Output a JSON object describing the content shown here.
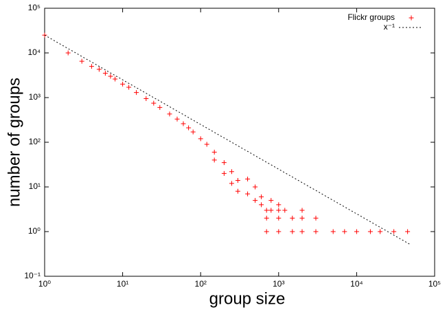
{
  "chart_data": {
    "type": "scatter",
    "xlabel": "group size",
    "ylabel": "number of groups",
    "xscale": "log",
    "yscale": "log",
    "xlim": [
      1,
      100000
    ],
    "ylim": [
      0.1,
      100000
    ],
    "xticks": [
      {
        "value": 1,
        "label": "10⁰"
      },
      {
        "value": 10,
        "label": "10¹"
      },
      {
        "value": 100,
        "label": "10²"
      },
      {
        "value": 1000,
        "label": "10³"
      },
      {
        "value": 10000,
        "label": "10⁴"
      },
      {
        "value": 100000,
        "label": "10⁵"
      }
    ],
    "yticks": [
      {
        "value": 0.1,
        "label": "10⁻¹"
      },
      {
        "value": 1,
        "label": "10⁰"
      },
      {
        "value": 10,
        "label": "10¹"
      },
      {
        "value": 100,
        "label": "10²"
      },
      {
        "value": 1000,
        "label": "10³"
      },
      {
        "value": 10000,
        "label": "10⁴"
      },
      {
        "value": 100000,
        "label": "10⁵"
      }
    ],
    "legend": "top-right",
    "series": [
      {
        "name": "Flickr groups",
        "color": "#ff0000",
        "kind": "points",
        "x": [
          1,
          2,
          3,
          4,
          5,
          6,
          7,
          8,
          10,
          12,
          15,
          20,
          25,
          30,
          40,
          50,
          60,
          70,
          80,
          100,
          120,
          150,
          150,
          200,
          200,
          250,
          250,
          300,
          300,
          400,
          400,
          500,
          500,
          600,
          600,
          700,
          800,
          800,
          1000,
          1000,
          1200,
          1500,
          2000,
          3000,
          700,
          1000,
          1500,
          2000,
          3000,
          5000,
          7000,
          10000,
          15000,
          20000,
          30000,
          45000,
          700,
          1000,
          2000
        ],
        "values": [
          25000,
          10000,
          6500,
          5000,
          4300,
          3500,
          3000,
          2600,
          2000,
          1700,
          1300,
          950,
          750,
          600,
          430,
          330,
          260,
          210,
          170,
          120,
          90,
          60,
          40,
          35,
          20,
          22,
          12,
          14,
          8,
          7,
          15,
          5,
          10,
          4,
          6,
          3,
          3,
          5,
          2,
          4,
          3,
          2,
          2,
          2,
          1,
          1,
          1,
          1,
          1,
          1,
          1,
          1,
          1,
          1,
          1,
          1,
          2,
          3,
          3
        ]
      },
      {
        "name": "x⁻¹",
        "color": "#000000",
        "kind": "line",
        "x": [
          1,
          50000
        ],
        "values": [
          25000,
          0.5
        ]
      }
    ]
  }
}
